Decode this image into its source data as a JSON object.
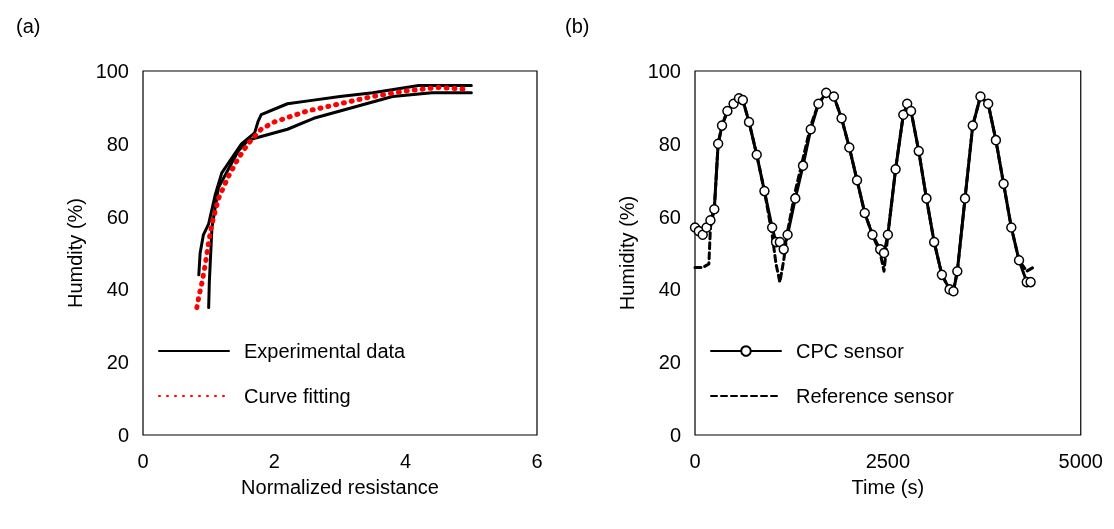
{
  "chart_data": [
    {
      "type": "line",
      "annotations": [
        "(a)"
      ],
      "xlabel": "Normalized resistance",
      "ylabel": "Humdity (%)",
      "xlim": [
        0,
        6
      ],
      "xticks": [
        0,
        2,
        4,
        6
      ],
      "ylim": [
        0,
        100
      ],
      "yticks": [
        0,
        20,
        40,
        60,
        80,
        100
      ],
      "grid": false,
      "legend": "bottom left",
      "marker": "none",
      "series": [
        {
          "name": "Experimental data",
          "color": "#000000",
          "line_style": "solid",
          "x": [
            1.0,
            1.01,
            1.05,
            1.15,
            1.3,
            1.45,
            1.6,
            1.8,
            2.2,
            2.6,
            3.0,
            3.4,
            3.8,
            4.4,
            5.0
          ],
          "values": [
            35,
            42,
            57,
            68,
            73,
            78,
            81,
            82,
            84,
            87,
            89,
            91,
            93,
            94,
            94
          ]
        },
        {
          "color": "#000000",
          "line_style": "solid",
          "x": [
            0.85,
            0.87,
            0.92,
            1.0,
            1.1,
            1.2,
            1.35,
            1.5,
            1.7,
            1.75,
            1.8,
            2.2,
            2.6,
            3.0,
            3.5,
            4.2,
            5.0
          ],
          "values": [
            44,
            50,
            55,
            58,
            66,
            72,
            76,
            80,
            83,
            86,
            88,
            91,
            92,
            93,
            94,
            96,
            96
          ]
        },
        {
          "name": "Curve fitting",
          "color": "#ff0000",
          "line_style": "dotted",
          "x": [
            0.82,
            0.85,
            0.9,
            0.95,
            1.0,
            1.05,
            1.15,
            1.3,
            1.45,
            1.6,
            1.8,
            2.0,
            2.5,
            3.0,
            3.5,
            4.0,
            4.5,
            4.9
          ],
          "values": [
            35,
            38,
            42,
            47,
            53,
            58,
            65,
            71,
            76,
            80,
            84,
            86,
            89,
            91,
            93,
            94.5,
            95.5,
            95
          ]
        }
      ]
    },
    {
      "type": "line",
      "annotations": [
        "(b)"
      ],
      "xlabel": "Time (s)",
      "ylabel": "Humidity (%)",
      "xlim": [
        0,
        5000
      ],
      "xticks": [
        0,
        2500,
        5000
      ],
      "ylim": [
        0,
        100
      ],
      "yticks": [
        0,
        20,
        40,
        60,
        80,
        100
      ],
      "grid": false,
      "legend": "bottom left",
      "series": [
        {
          "name": "CPC sensor",
          "color": "#000000",
          "marker": "circle",
          "line_style": "solid",
          "x": [
            0,
            50,
            100,
            150,
            200,
            250,
            300,
            350,
            420,
            500,
            570,
            620,
            700,
            800,
            900,
            1000,
            1050,
            1100,
            1150,
            1200,
            1300,
            1400,
            1500,
            1600,
            1700,
            1800,
            1900,
            2000,
            2100,
            2200,
            2300,
            2400,
            2450,
            2500,
            2600,
            2700,
            2750,
            2800,
            2900,
            3000,
            3100,
            3200,
            3300,
            3350,
            3400,
            3500,
            3600,
            3700,
            3800,
            3900,
            4000,
            4100,
            4200,
            4300,
            4350
          ],
          "values": [
            57,
            56,
            55,
            57,
            59,
            62,
            80,
            85,
            89,
            91,
            92.5,
            92,
            86,
            77,
            67,
            57,
            53,
            53,
            51,
            55,
            65,
            74,
            84,
            91,
            94,
            93,
            87,
            79,
            70,
            61,
            55,
            51,
            50,
            55,
            73,
            88,
            91,
            89,
            78,
            65,
            53,
            44,
            40,
            39.5,
            45,
            65,
            85,
            93,
            91,
            81,
            69,
            57,
            48,
            42,
            42
          ]
        },
        {
          "name": "Reference sensor",
          "color": "#000000",
          "marker": "none",
          "line_style": "dashed",
          "x": [
            0,
            100,
            180,
            200,
            250,
            300,
            350,
            420,
            500,
            570,
            620,
            700,
            800,
            900,
            1000,
            1050,
            1100,
            1150,
            1200,
            1300,
            1400,
            1500,
            1600,
            1700,
            1800,
            1900,
            2000,
            2100,
            2200,
            2300,
            2400,
            2450,
            2500,
            2600,
            2700,
            2750,
            2800,
            2900,
            3000,
            3100,
            3200,
            3300,
            3350,
            3400,
            3500,
            3600,
            3700,
            3800,
            3900,
            4000,
            4100,
            4200,
            4300,
            4380
          ],
          "values": [
            46,
            46,
            47,
            57,
            62,
            80,
            85,
            89,
            91,
            92.5,
            92,
            86,
            77,
            67,
            55,
            47,
            42,
            48,
            56,
            67,
            76,
            85,
            91,
            94,
            93,
            87,
            79,
            70,
            61,
            55,
            50,
            45,
            55,
            73,
            88,
            91,
            89,
            78,
            65,
            53,
            44,
            40,
            39.5,
            45,
            65,
            85,
            93,
            91,
            81,
            69,
            57,
            48,
            45,
            46
          ]
        }
      ]
    }
  ]
}
